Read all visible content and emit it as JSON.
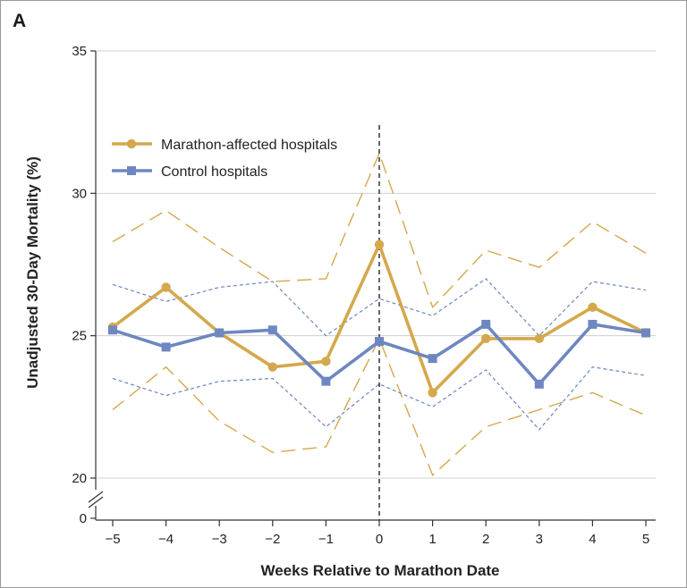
{
  "panel_label": "A",
  "colors": {
    "marathon": "#d4a84c",
    "control": "#6e87c1",
    "grid": "#d0d0d0",
    "axis": "#333333",
    "reference_line": "#222222"
  },
  "chart_data": {
    "type": "line",
    "xlabel": "Weeks Relative to Marathon Date",
    "ylabel": "Unadjusted 30-Day Mortality (%)",
    "x": [
      -5,
      -4,
      -3,
      -2,
      -1,
      0,
      1,
      2,
      3,
      4,
      5
    ],
    "x_tick_labels": [
      "−5",
      "−4",
      "−3",
      "−2",
      "−1",
      "0",
      "1",
      "2",
      "3",
      "4",
      "5"
    ],
    "xlim": [
      -5,
      5
    ],
    "ylim": [
      20,
      35
    ],
    "y_ticks": [
      20,
      25,
      30,
      35
    ],
    "y_extra_tick": "0",
    "y_axis_break": true,
    "grid": "horizontal",
    "legend_position": "upper-left",
    "reference_line_x": 0,
    "series": [
      {
        "name": "Marathon-affected hospitals",
        "marker": "circle",
        "values": [
          25.3,
          26.7,
          25.1,
          23.9,
          24.1,
          28.2,
          23.0,
          24.9,
          24.9,
          26.0,
          25.1
        ],
        "ci_upper": [
          28.3,
          29.4,
          28.1,
          26.9,
          27.0,
          31.4,
          26.0,
          28.0,
          27.4,
          29.0,
          27.9
        ],
        "ci_lower": [
          22.4,
          23.9,
          22.0,
          20.9,
          21.1,
          24.9,
          20.1,
          21.8,
          22.4,
          23.0,
          22.2
        ]
      },
      {
        "name": "Control hospitals",
        "marker": "square",
        "values": [
          25.2,
          24.6,
          25.1,
          25.2,
          23.4,
          24.8,
          24.2,
          25.4,
          23.3,
          25.4,
          25.1
        ],
        "ci_upper": [
          26.8,
          26.2,
          26.7,
          26.9,
          25.0,
          26.3,
          25.7,
          27.0,
          25.0,
          26.9,
          26.6
        ],
        "ci_lower": [
          23.5,
          22.9,
          23.4,
          23.5,
          21.8,
          23.3,
          22.5,
          23.8,
          21.7,
          23.9,
          23.6
        ]
      }
    ]
  }
}
